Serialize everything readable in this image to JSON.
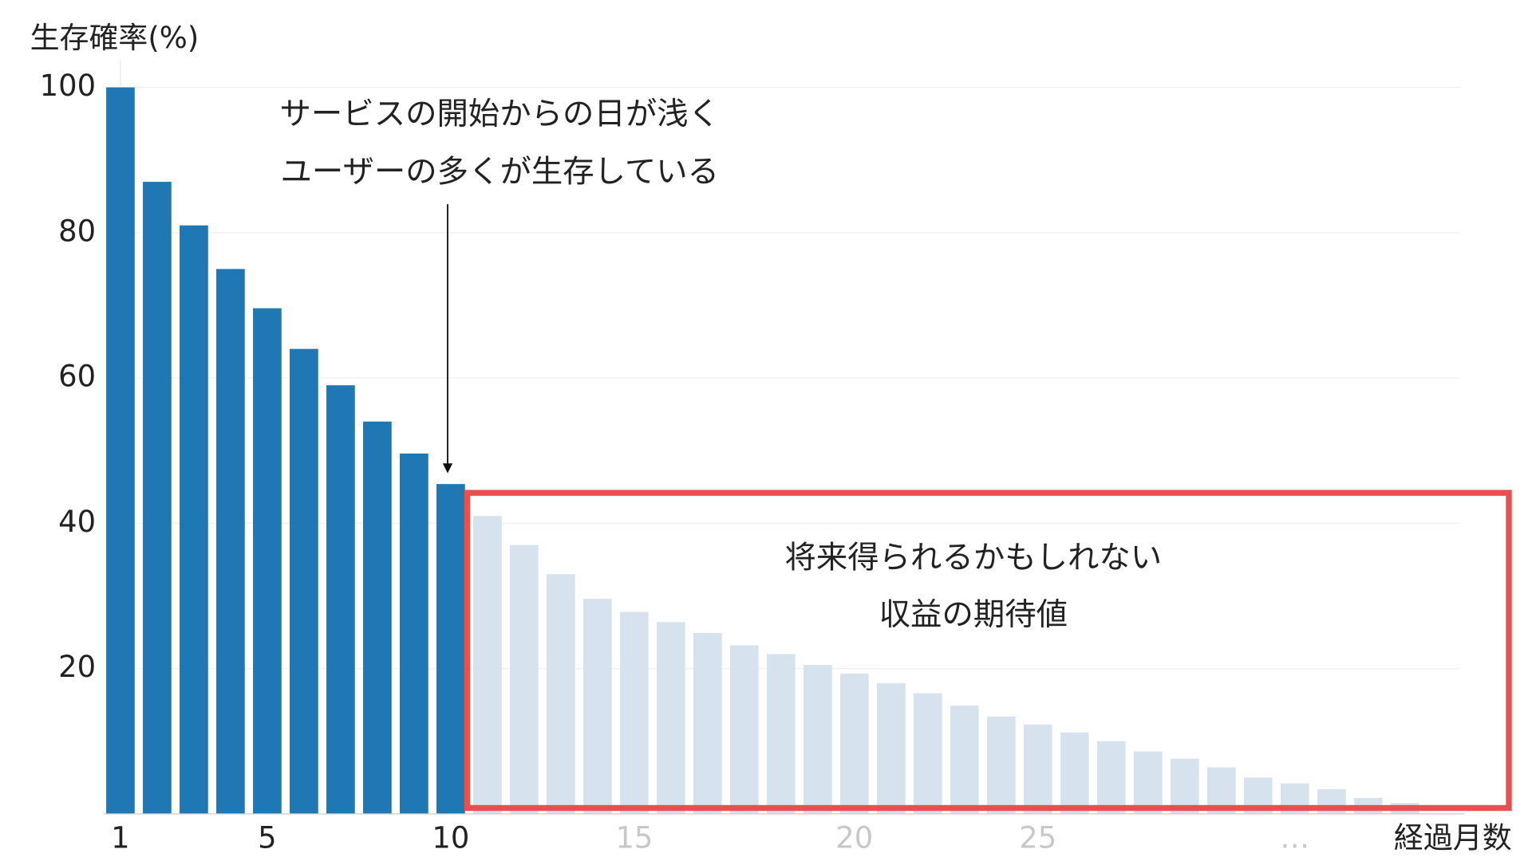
{
  "chart_data": {
    "type": "bar",
    "y_label": "生存確率(%)",
    "x_label": "経過月数",
    "categories": [
      "1",
      null,
      null,
      null,
      "5",
      null,
      null,
      null,
      null,
      "10",
      null,
      null,
      null,
      null,
      "15",
      null,
      null,
      null,
      null,
      null,
      "20",
      null,
      null,
      null,
      null,
      "25",
      null,
      null,
      null,
      null,
      null,
      null,
      "…",
      null,
      null,
      null
    ],
    "series": [
      {
        "color": "#1f77b4",
        "values": [
          100,
          87,
          81,
          75,
          69.6,
          64,
          59,
          54,
          49.6,
          45.4,
          null,
          null,
          null,
          null,
          null,
          null,
          null,
          null,
          null,
          null,
          null,
          null,
          null,
          null,
          null,
          null,
          null,
          null,
          null,
          null,
          null,
          null,
          null,
          null,
          null,
          null
        ]
      },
      {
        "color": "#d6e3ef",
        "values": [
          null,
          null,
          null,
          null,
          null,
          null,
          null,
          null,
          null,
          null,
          41,
          37,
          33,
          29.6,
          27.8,
          26.4,
          24.9,
          23.2,
          22,
          20.5,
          19.3,
          18,
          16.6,
          14.9,
          13.4,
          12.3,
          11.2,
          10,
          8.6,
          7.6,
          6.4,
          5,
          4.2,
          3.4,
          2.2,
          1.5
        ]
      }
    ],
    "muted_label_color": "#c8c8c8",
    "ylim": [
      0,
      100
    ],
    "yticks": [
      20,
      40,
      60,
      80,
      100
    ],
    "grid": true,
    "annotations": [
      {
        "lines": [
          "サービスの開始からの日が浅く",
          "ユーザーの多くが生存している"
        ]
      },
      {
        "lines": [
          "将来得られるかもしれない",
          "収益の期待値"
        ]
      }
    ],
    "highlight_box_color": "#e8504f"
  }
}
